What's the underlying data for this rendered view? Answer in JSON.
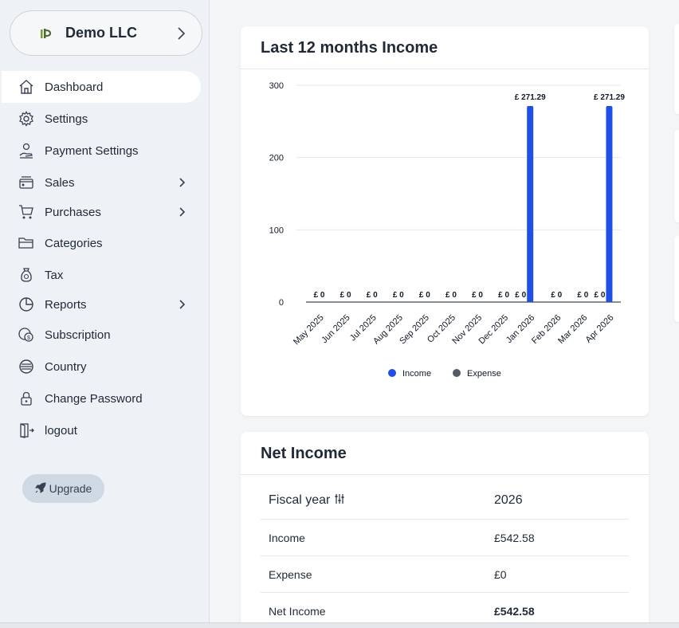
{
  "company": {
    "name": "Demo LLC"
  },
  "sidebar": {
    "items": [
      {
        "label": "Dashboard",
        "icon": "home-icon",
        "active": true,
        "submenu": false
      },
      {
        "label": "Settings",
        "icon": "gear-icon",
        "active": false,
        "submenu": false
      },
      {
        "label": "Payment Settings",
        "icon": "payment-hand-icon",
        "active": false,
        "submenu": false
      },
      {
        "label": "Sales",
        "icon": "card-icon",
        "active": false,
        "submenu": true
      },
      {
        "label": "Purchases",
        "icon": "cart-icon",
        "active": false,
        "submenu": true
      },
      {
        "label": "Categories",
        "icon": "folder-icon",
        "active": false,
        "submenu": false
      },
      {
        "label": "Tax",
        "icon": "tax-bag-icon",
        "active": false,
        "submenu": false
      },
      {
        "label": "Reports",
        "icon": "pie-chart-icon",
        "active": false,
        "submenu": true
      },
      {
        "label": "Subscription",
        "icon": "coins-icon",
        "active": false,
        "submenu": false
      },
      {
        "label": "Country",
        "icon": "globe-lines-icon",
        "active": false,
        "submenu": false
      },
      {
        "label": "Change Password",
        "icon": "lock-icon",
        "active": false,
        "submenu": false
      },
      {
        "label": "logout",
        "icon": "logout-door-icon",
        "active": false,
        "submenu": false
      }
    ],
    "upgrade_label": "Upgrade"
  },
  "income_card": {
    "title": "Last 12 months Income"
  },
  "chart_data": {
    "type": "bar",
    "title": "Last 12 months Income",
    "categories": [
      "May 2025",
      "Jun 2025",
      "Jul 2025",
      "Aug 2025",
      "Sep 2025",
      "Oct 2025",
      "Nov 2025",
      "Dec 2025",
      "Jan 2026",
      "Feb 2026",
      "Mar 2026",
      "Apr 2026"
    ],
    "series": [
      {
        "name": "Income",
        "color": "#1f4fe6",
        "values": [
          0,
          0,
          0,
          0,
          0,
          0,
          0,
          0,
          271.29,
          0,
          0,
          271.29
        ]
      },
      {
        "name": "Expense",
        "color": "#545b62",
        "values": [
          0,
          0,
          0,
          0,
          0,
          0,
          0,
          0,
          0,
          0,
          0,
          0
        ]
      }
    ],
    "data_labels": {
      "income": [
        "",
        "",
        "",
        "",
        "",
        "",
        "",
        "",
        "£ 271.29",
        "",
        "",
        "£ 271.29"
      ],
      "expense": [
        "£ 0",
        "£ 0",
        "£ 0",
        "£ 0",
        "£ 0",
        "£ 0",
        "£ 0",
        "£ 0",
        "£ 0",
        "£ 0",
        "£ 0",
        "£ 0"
      ],
      "income_zero": "£ 0"
    },
    "yticks": [
      0,
      100,
      200,
      300
    ],
    "ylim": [
      0,
      300
    ],
    "grid": true,
    "legend_position": "bottom-center"
  },
  "net_income": {
    "title": "Net Income",
    "header": {
      "label": "Fiscal year",
      "value": "2026",
      "icon": "sliders-icon"
    },
    "rows": [
      {
        "label": "Income",
        "value": "£542.58"
      },
      {
        "label": "Expense",
        "value": "£0"
      },
      {
        "label": "Net Income",
        "value": "£542.58"
      }
    ]
  }
}
